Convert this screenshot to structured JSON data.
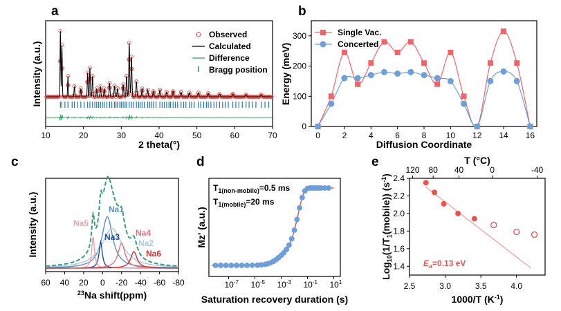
{
  "chart_data": [
    {
      "panel": "a",
      "type": "line",
      "xlabel": "2 theta(°)",
      "ylabel": "Intensity (a.u.)",
      "xlim": [
        10,
        70
      ],
      "xticks": [
        "10",
        "20",
        "30",
        "40",
        "50",
        "60",
        "70"
      ],
      "legend": [
        "Observed",
        "Calculated",
        "Difference",
        "Bragg position"
      ],
      "legend_colors": [
        "#e8524f",
        "#000000",
        "#2ca05a",
        "#1f77b4"
      ],
      "peaks": [
        {
          "x": 13.9,
          "h": 0.95
        },
        {
          "x": 14.3,
          "h": 0.75
        },
        {
          "x": 15.9,
          "h": 0.3
        },
        {
          "x": 17.6,
          "h": 0.15
        },
        {
          "x": 19.3,
          "h": 0.12
        },
        {
          "x": 21.1,
          "h": 0.35
        },
        {
          "x": 21.7,
          "h": 0.42
        },
        {
          "x": 22.4,
          "h": 0.3
        },
        {
          "x": 23.5,
          "h": 0.12
        },
        {
          "x": 24.5,
          "h": 0.15
        },
        {
          "x": 25.5,
          "h": 0.12
        },
        {
          "x": 26.9,
          "h": 0.2
        },
        {
          "x": 28.2,
          "h": 0.16
        },
        {
          "x": 29.0,
          "h": 0.12
        },
        {
          "x": 30.5,
          "h": 0.18
        },
        {
          "x": 31.4,
          "h": 0.3
        },
        {
          "x": 32.1,
          "h": 0.78
        },
        {
          "x": 32.7,
          "h": 0.58
        },
        {
          "x": 34.0,
          "h": 0.22
        },
        {
          "x": 35.5,
          "h": 0.12
        },
        {
          "x": 37.0,
          "h": 0.1
        },
        {
          "x": 38.5,
          "h": 0.08
        },
        {
          "x": 40.2,
          "h": 0.1
        },
        {
          "x": 42.0,
          "h": 0.07
        },
        {
          "x": 43.7,
          "h": 0.08
        },
        {
          "x": 45.8,
          "h": 0.07
        },
        {
          "x": 48.0,
          "h": 0.06
        },
        {
          "x": 50.4,
          "h": 0.06
        },
        {
          "x": 53.0,
          "h": 0.05
        },
        {
          "x": 56.0,
          "h": 0.04
        },
        {
          "x": 59.5,
          "h": 0.04
        },
        {
          "x": 63.0,
          "h": 0.03
        },
        {
          "x": 67.0,
          "h": 0.03
        }
      ],
      "bragg_positions": [
        13.9,
        14.3,
        15.1,
        15.9,
        17.0,
        17.6,
        18.4,
        19.3,
        20.2,
        21.1,
        21.7,
        22.4,
        23.0,
        23.5,
        24.0,
        24.5,
        25.0,
        25.5,
        26.2,
        26.9,
        27.5,
        28.2,
        28.6,
        29.0,
        29.6,
        30.0,
        30.5,
        31.0,
        31.4,
        32.1,
        32.7,
        33.3,
        34.0,
        34.6,
        35.0,
        35.5,
        36.1,
        37.0,
        37.5,
        38.0,
        38.5,
        39.2,
        40.2,
        40.8,
        41.4,
        42.0,
        42.6,
        43.0,
        43.7,
        44.3,
        44.9,
        45.8,
        46.5,
        47.1,
        48.0,
        48.6,
        49.3,
        50.4,
        51.0,
        51.8,
        52.5,
        53.0,
        53.7,
        54.5,
        55.2,
        56.0,
        56.8,
        57.5,
        58.3,
        59.5,
        60.3,
        61.1,
        62.0,
        63.0,
        63.8,
        64.7,
        65.6,
        67.0,
        68.0,
        69.0
      ]
    },
    {
      "panel": "b",
      "type": "line",
      "xlabel": "Diffusion Coordinate",
      "ylabel": "Energy (meV)",
      "xlim": [
        -0.5,
        16.5
      ],
      "ylim": [
        0,
        350
      ],
      "xticks": [
        "0",
        "2",
        "4",
        "6",
        "8",
        "10",
        "12",
        "14",
        "16"
      ],
      "yticks": [
        "0",
        "100",
        "200",
        "300"
      ],
      "series": [
        {
          "name": "Single Vac.",
          "color": "#f0646a",
          "marker": "square",
          "x": [
            0,
            1,
            2,
            3,
            4,
            5,
            6,
            7,
            8,
            9,
            10,
            11,
            12,
            13,
            14,
            15,
            16
          ],
          "values": [
            0,
            100,
            245,
            140,
            210,
            280,
            245,
            280,
            210,
            140,
            245,
            100,
            0,
            210,
            315,
            210,
            0
          ]
        },
        {
          "name": "Concerted",
          "color": "#6f9fd8",
          "marker": "circle",
          "x": [
            0,
            1,
            2,
            3,
            4,
            5,
            6,
            7,
            8,
            9,
            10,
            11,
            12,
            13,
            14,
            15,
            16
          ],
          "values": [
            0,
            75,
            160,
            160,
            170,
            180,
            175,
            180,
            170,
            160,
            150,
            75,
            0,
            150,
            182,
            150,
            0
          ]
        }
      ]
    },
    {
      "panel": "c",
      "type": "line",
      "xlabel": "23Na shift(ppm)",
      "xlabel_sup": "23",
      "xlabel_main": "Na shift(ppm)",
      "ylabel": "Intensity (a.u.)",
      "xlim": [
        60,
        -80
      ],
      "xticks": [
        "60",
        "40",
        "20",
        "0",
        "-20",
        "-40",
        "-60",
        "-80"
      ],
      "components": [
        {
          "name": "Na1",
          "center": -5,
          "width": 14,
          "height": 0.62,
          "color": "#5a8fc0"
        },
        {
          "name": "Na2",
          "center": -10,
          "width": 26,
          "height": 0.48,
          "color": "#a9c6e6"
        },
        {
          "name": "Na3",
          "center": 2,
          "width": 4,
          "height": 0.32,
          "color": "#1e4e9c"
        },
        {
          "name": "Na4",
          "center": -20,
          "width": 9,
          "height": 0.3,
          "color": "#e87078"
        },
        {
          "name": "Na5",
          "center": 10,
          "width": 3.5,
          "height": 0.38,
          "color": "#f0a4a8"
        },
        {
          "name": "Na6",
          "center": -33,
          "width": 8,
          "height": 0.2,
          "color": "#d03030"
        }
      ],
      "total_color": "#3a9a7a"
    },
    {
      "panel": "d",
      "type": "scatter",
      "xlabel": "Saturation recovery duration (s)",
      "ylabel": "Mz' (a.u.)",
      "xscale": "log",
      "xlim_exp": [
        -8.5,
        1.5
      ],
      "xtick_labels": [
        "10",
        "10",
        "10",
        "10",
        "10"
      ],
      "xtick_exps": [
        "-7",
        "-5",
        "-3",
        "-1",
        "1"
      ],
      "annotation_1": "T",
      "annotation_1_sub": "1(non-mobile)",
      "annotation_1_tail": "=0.5 ms",
      "annotation_2": "T",
      "annotation_2_sub": "1(mobile)",
      "annotation_2_tail": "=20 ms",
      "t1_nonmobile_s": 0.0005,
      "t1_mobile_s": 0.02,
      "point_exps": [
        -8,
        -7.6,
        -7.2,
        -6.8,
        -6.4,
        -6.0,
        -5.6,
        -5.2,
        -4.8,
        -4.5,
        -4.2,
        -4.0,
        -3.8,
        -3.6,
        -3.4,
        -3.2,
        -3.0,
        -2.8,
        -2.6,
        -2.4,
        -2.2,
        -2.0,
        -1.8,
        -1.6,
        -1.4,
        -1.2,
        -1.0,
        -0.8,
        -0.6,
        -0.4,
        -0.2,
        0.0,
        0.3,
        0.6
      ]
    },
    {
      "panel": "e",
      "type": "scatter",
      "xlabel": "1000/T (K-1)",
      "xlabel_main": "1000/T (K",
      "xlabel_sup": "-1",
      "xlabel_tail": ")",
      "ylabel": "Log10(1/T1(mobile)) (s-1)",
      "top_axis_label": "T (°C)",
      "top_ticks": [
        "120",
        "80",
        "40",
        "0",
        "-40"
      ],
      "xlim": [
        2.5,
        4.4
      ],
      "ylim": [
        1.3,
        2.4
      ],
      "xticks": [
        "2.5",
        "3.0",
        "3.5",
        "4.0"
      ],
      "yticks": [
        "1.4",
        "1.6",
        "1.8",
        "2.0",
        "2.2",
        "2.4"
      ],
      "filled_points": {
        "x": [
          2.73,
          2.85,
          2.98,
          3.18,
          3.41
        ],
        "y": [
          2.35,
          2.24,
          2.11,
          2.0,
          1.94
        ]
      },
      "open_points": {
        "x": [
          3.68,
          4.0,
          4.25
        ],
        "y": [
          1.87,
          1.79,
          1.76
        ]
      },
      "fit_line": {
        "x": [
          2.73,
          4.2
        ],
        "y": [
          2.3,
          1.38
        ]
      },
      "ea_label": "E",
      "ea_sub": "a",
      "ea_value": "=0.13 eV",
      "color": "#e8524f"
    }
  ],
  "legend_a": {
    "observed": "Observed",
    "calculated": "Calculated",
    "difference": "Difference",
    "bragg": "Bragg position"
  },
  "legend_b": {
    "single": "Single Vac.",
    "concerted": "Concerted"
  },
  "panels": {
    "a": "a",
    "b": "b",
    "c": "c",
    "d": "d",
    "e": "e"
  }
}
